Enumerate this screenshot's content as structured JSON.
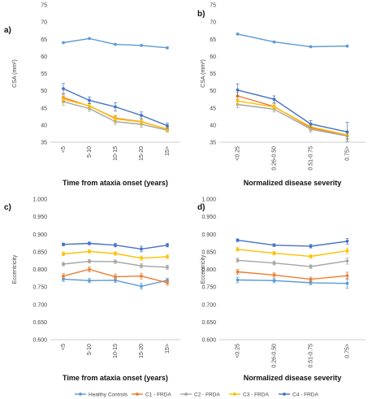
{
  "colors": {
    "healthy": "#5B9BD5",
    "c1": "#ED7D31",
    "c2": "#A5A5A5",
    "c3": "#FFC000",
    "c4": "#4472C4"
  },
  "legend": [
    {
      "label": "Healthy Controls",
      "color": "#5B9BD5"
    },
    {
      "label": "C1 - FRDA",
      "color": "#ED7D31"
    },
    {
      "label": "C2 - FRDA",
      "color": "#A5A5A5"
    },
    {
      "label": "C3 - FRDA",
      "color": "#FFC000"
    },
    {
      "label": "C4 - FRDA",
      "color": "#4472C4"
    }
  ],
  "chart_data": [
    {
      "panel": "a)",
      "type": "line",
      "categories": [
        "<5",
        "5-10",
        "10-15",
        "15-20",
        "15>"
      ],
      "xlabel": "Time from ataxia onset (years)",
      "ylabel": "CSA (mm²)",
      "ylim": [
        35,
        75
      ],
      "yticks": [
        "35",
        "40",
        "45",
        "50",
        "55",
        "60",
        "65",
        "70",
        "75"
      ],
      "series": [
        {
          "name": "Healthy Controls",
          "color": "#5B9BD5",
          "values": [
            64.0,
            65.2,
            63.5,
            63.2,
            62.5
          ],
          "err": [
            0,
            0,
            0,
            0,
            0
          ]
        },
        {
          "name": "C1 - FRDA",
          "color": "#ED7D31",
          "values": [
            48.0,
            45.5,
            42.0,
            41.0,
            38.8
          ],
          "err": [
            1.0,
            0.8,
            0.8,
            0.8,
            0.6
          ]
        },
        {
          "name": "C2 - FRDA",
          "color": "#A5A5A5",
          "values": [
            46.8,
            44.8,
            41.0,
            40.2,
            38.5
          ],
          "err": [
            1.0,
            0.8,
            0.8,
            0.8,
            0.6
          ]
        },
        {
          "name": "C3 - FRDA",
          "color": "#FFC000",
          "values": [
            47.5,
            45.6,
            41.8,
            40.9,
            38.8
          ],
          "err": [
            1.0,
            0.8,
            0.8,
            0.8,
            0.6
          ]
        },
        {
          "name": "C4 - FRDA",
          "color": "#4472C4",
          "values": [
            50.6,
            47.2,
            45.3,
            42.8,
            39.8
          ],
          "err": [
            1.5,
            1.0,
            1.2,
            1.0,
            0.8
          ]
        }
      ]
    },
    {
      "panel": "b)",
      "type": "line",
      "categories": [
        "<0.25",
        "0.26-0.50",
        "0.51-0.75",
        "0.75>"
      ],
      "xlabel": "Normalized disease severity",
      "ylabel": "CSA (mm²)",
      "ylim": [
        35,
        75
      ],
      "yticks": [
        "35",
        "40",
        "45",
        "50",
        "55",
        "60",
        "65",
        "70",
        "75"
      ],
      "series": [
        {
          "name": "Healthy Controls",
          "color": "#5B9BD5",
          "values": [
            66.5,
            64.2,
            62.8,
            63.0
          ],
          "err": [
            0,
            0,
            0,
            0
          ]
        },
        {
          "name": "C1 - FRDA",
          "color": "#ED7D31",
          "values": [
            48.5,
            45.4,
            39.2,
            37.0
          ],
          "err": [
            1.0,
            0.8,
            0.8,
            1.0
          ]
        },
        {
          "name": "C2 - FRDA",
          "color": "#A5A5A5",
          "values": [
            46.0,
            44.6,
            38.8,
            36.8
          ],
          "err": [
            1.0,
            0.8,
            0.8,
            1.0
          ]
        },
        {
          "name": "C3 - FRDA",
          "color": "#FFC000",
          "values": [
            47.0,
            45.3,
            39.5,
            37.1
          ],
          "err": [
            1.0,
            0.8,
            0.8,
            1.0
          ]
        },
        {
          "name": "C4 - FRDA",
          "color": "#4472C4",
          "values": [
            50.2,
            47.5,
            40.3,
            38.0
          ],
          "err": [
            1.8,
            1.0,
            1.0,
            2.8
          ]
        }
      ]
    },
    {
      "panel": "c)",
      "type": "line",
      "categories": [
        "<5",
        "5-10",
        "10-15",
        "15-20",
        "15>"
      ],
      "xlabel": "Time from ataxia onset (years)",
      "ylabel": "Eccentricity",
      "ylim": [
        0.6,
        1.0
      ],
      "yticks": [
        "0.600",
        "0.650",
        "0.700",
        "0.750",
        "0.800",
        "0.850",
        "0.900",
        "0.950",
        "1.000"
      ],
      "series": [
        {
          "name": "Healthy Controls",
          "color": "#5B9BD5",
          "values": [
            0.772,
            0.768,
            0.769,
            0.752,
            0.769
          ],
          "err": [
            0.006,
            0.006,
            0.006,
            0.008,
            0.006
          ]
        },
        {
          "name": "C1 - FRDA",
          "color": "#ED7D31",
          "values": [
            0.781,
            0.8,
            0.779,
            0.781,
            0.762
          ],
          "err": [
            0.007,
            0.007,
            0.008,
            0.008,
            0.007
          ]
        },
        {
          "name": "C2 - FRDA",
          "color": "#A5A5A5",
          "values": [
            0.815,
            0.823,
            0.822,
            0.81,
            0.806
          ],
          "err": [
            0.005,
            0.005,
            0.005,
            0.006,
            0.006
          ]
        },
        {
          "name": "C3 - FRDA",
          "color": "#FFC000",
          "values": [
            0.844,
            0.851,
            0.845,
            0.832,
            0.836
          ],
          "err": [
            0.005,
            0.005,
            0.005,
            0.006,
            0.005
          ]
        },
        {
          "name": "C4 - FRDA",
          "color": "#4472C4",
          "values": [
            0.871,
            0.874,
            0.869,
            0.858,
            0.869
          ],
          "err": [
            0.004,
            0.004,
            0.005,
            0.008,
            0.005
          ]
        }
      ]
    },
    {
      "panel": "d)",
      "type": "line",
      "categories": [
        "<0.25",
        "0.26-0.50",
        "0.51-0.75",
        "0.75>"
      ],
      "xlabel": "Normalized disease severity",
      "ylabel": "Eccentricity",
      "ylim": [
        0.6,
        1.0
      ],
      "yticks": [
        "0.600",
        "0.650",
        "0.700",
        "0.750",
        "0.800",
        "0.850",
        "0.900",
        "0.950",
        "1.000"
      ],
      "series": [
        {
          "name": "Healthy Controls",
          "color": "#5B9BD5",
          "values": [
            0.77,
            0.768,
            0.762,
            0.76
          ],
          "err": [
            0.008,
            0.006,
            0.006,
            0.014
          ]
        },
        {
          "name": "C1 - FRDA",
          "color": "#ED7D31",
          "values": [
            0.793,
            0.784,
            0.772,
            0.782
          ],
          "err": [
            0.007,
            0.006,
            0.006,
            0.01
          ]
        },
        {
          "name": "C2 - FRDA",
          "color": "#A5A5A5",
          "values": [
            0.826,
            0.818,
            0.808,
            0.824
          ],
          "err": [
            0.006,
            0.005,
            0.005,
            0.009
          ]
        },
        {
          "name": "C3 - FRDA",
          "color": "#FFC000",
          "values": [
            0.857,
            0.846,
            0.837,
            0.853
          ],
          "err": [
            0.005,
            0.005,
            0.005,
            0.008
          ]
        },
        {
          "name": "C4 - FRDA",
          "color": "#4472C4",
          "values": [
            0.883,
            0.869,
            0.866,
            0.88
          ],
          "err": [
            0.004,
            0.004,
            0.005,
            0.008
          ]
        }
      ]
    }
  ]
}
